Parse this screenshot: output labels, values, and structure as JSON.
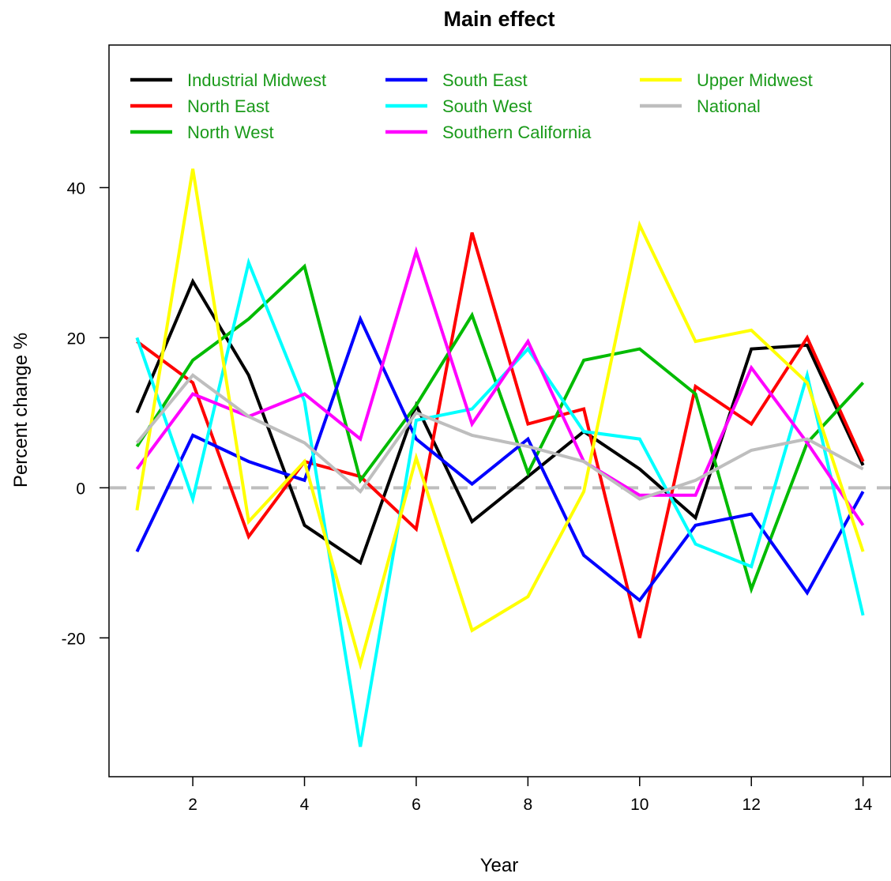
{
  "chart_data": {
    "type": "line",
    "title": "Main effect",
    "xlabel": "Year",
    "ylabel": "Percent change %",
    "xlim": [
      0.5,
      14.5
    ],
    "ylim": [
      -38.5,
      59
    ],
    "x_ticks": [
      2,
      4,
      6,
      8,
      10,
      12,
      14
    ],
    "y_ticks": [
      -20,
      0,
      20,
      40
    ],
    "x": [
      1,
      2,
      3,
      4,
      5,
      6,
      7,
      8,
      9,
      10,
      11,
      12,
      13,
      14
    ],
    "reference_line": {
      "y": 0,
      "style": "dashed",
      "color": "#bebebe"
    },
    "legend": {
      "position": "top-left",
      "columns": 3,
      "text_color": "#1a9a1a"
    },
    "series": [
      {
        "name": "Industrial Midwest",
        "color": "#000000",
        "values": [
          10,
          27.5,
          15,
          -5,
          -10,
          11,
          -4.5,
          1.5,
          7.5,
          2.5,
          -4,
          18.5,
          19,
          3
        ]
      },
      {
        "name": "North East",
        "color": "#ff0000",
        "values": [
          19.5,
          14,
          -6.5,
          3.5,
          1.5,
          -5.5,
          34,
          8.5,
          10.5,
          -20,
          13.5,
          8.5,
          20,
          3.5
        ]
      },
      {
        "name": "North West",
        "color": "#00bb00",
        "values": [
          5.5,
          17,
          22.5,
          29.5,
          1,
          11,
          23,
          2,
          17,
          18.5,
          12.5,
          -13.5,
          6,
          14
        ]
      },
      {
        "name": "South East",
        "color": "#0000ff",
        "values": [
          -8.5,
          7,
          3.5,
          1,
          22.5,
          6.5,
          0.5,
          6.5,
          -9,
          -15,
          -5,
          -3.5,
          -14,
          -0.5
        ]
      },
      {
        "name": "South West",
        "color": "#00ffff",
        "values": [
          20,
          -1.5,
          30,
          11.5,
          -34.5,
          9,
          10.5,
          18.5,
          7.5,
          6.5,
          -7.5,
          -10.5,
          15,
          -17
        ]
      },
      {
        "name": "Southern California",
        "color": "#ff00ff",
        "values": [
          2.5,
          12.5,
          9.5,
          12.5,
          6.5,
          31.5,
          8.5,
          19.5,
          3.5,
          -1,
          -1,
          16,
          6,
          -5
        ]
      },
      {
        "name": "Upper Midwest",
        "color": "#ffff00",
        "values": [
          -3,
          42.5,
          -4.5,
          3.5,
          -23.5,
          4,
          -19,
          -14.5,
          -0.5,
          35,
          19.5,
          21,
          14,
          -8.5
        ]
      },
      {
        "name": "National",
        "color": "#bebebe",
        "values": [
          6,
          15,
          9.5,
          6,
          -0.5,
          10,
          7,
          5.5,
          3.5,
          -1.5,
          1,
          5,
          6.5,
          2.5
        ]
      }
    ]
  }
}
